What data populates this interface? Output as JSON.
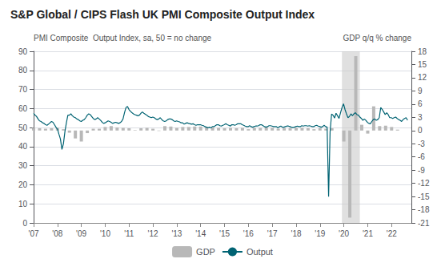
{
  "chart_data": {
    "type": "line",
    "title": "S&P Global / CIPS Flash UK PMI Composite Output Index",
    "ylabel": "PMI Composite  Output Index, sa, 50 = no change",
    "y2label": "GDP q/q % change",
    "xlim": [
      2007.0,
      2022.83
    ],
    "xticks": [
      {
        "value": 2007,
        "label": "'07"
      },
      {
        "value": 2008,
        "label": "'08"
      },
      {
        "value": 2009,
        "label": "'09"
      },
      {
        "value": 2010,
        "label": "'10"
      },
      {
        "value": 2011,
        "label": "'11"
      },
      {
        "value": 2012,
        "label": "'12"
      },
      {
        "value": 2013,
        "label": "'13"
      },
      {
        "value": 2014,
        "label": "'14"
      },
      {
        "value": 2015,
        "label": "'15"
      },
      {
        "value": 2016,
        "label": "'16"
      },
      {
        "value": 2017,
        "label": "'17"
      },
      {
        "value": 2018,
        "label": "'18"
      },
      {
        "value": 2019,
        "label": "'19"
      },
      {
        "value": 2020,
        "label": "'20"
      },
      {
        "value": 2021,
        "label": "'21"
      },
      {
        "value": 2022,
        "label": "'22"
      }
    ],
    "ylim": [
      0,
      90
    ],
    "yticks": [
      0,
      10,
      20,
      30,
      40,
      50,
      60,
      70,
      80,
      90
    ],
    "y2lim": [
      -21,
      18
    ],
    "y2ticks": [
      -21,
      -18,
      -15,
      -12,
      -9,
      -6,
      -3,
      0,
      3,
      6,
      9,
      12,
      15,
      18
    ],
    "grid": true,
    "legend": "bottom",
    "shade": [
      2019.92,
      2020.67
    ],
    "series": [
      {
        "name": "GDP",
        "type": "bar",
        "axis": "y2",
        "color": "#b8b8b8",
        "x": [
          2007.0,
          2007.25,
          2007.5,
          2007.75,
          2008.0,
          2008.25,
          2008.5,
          2008.75,
          2009.0,
          2009.25,
          2009.5,
          2009.75,
          2010.0,
          2010.25,
          2010.5,
          2010.75,
          2011.0,
          2011.25,
          2011.5,
          2011.75,
          2012.0,
          2012.25,
          2012.5,
          2012.75,
          2013.0,
          2013.25,
          2013.5,
          2013.75,
          2014.0,
          2014.25,
          2014.5,
          2014.75,
          2015.0,
          2015.25,
          2015.5,
          2015.75,
          2016.0,
          2016.25,
          2016.5,
          2016.75,
          2017.0,
          2017.25,
          2017.5,
          2017.75,
          2018.0,
          2018.25,
          2018.5,
          2018.75,
          2019.0,
          2019.25,
          2019.5,
          2019.75,
          2020.0,
          2020.25,
          2020.5,
          2020.75,
          2021.0,
          2021.25,
          2021.5,
          2021.75,
          2022.0,
          2022.25
        ],
        "values": [
          0.6,
          0.5,
          0.4,
          0.5,
          0.6,
          0.3,
          -0.5,
          -1.8,
          -2.5,
          -0.6,
          0.4,
          0.4,
          0.8,
          1.0,
          0.7,
          0.6,
          0.5,
          0.1,
          0.5,
          0.6,
          0.4,
          -0.1,
          1.0,
          0.9,
          0.6,
          0.8,
          0.8,
          0.9,
          0.9,
          0.8,
          0.7,
          0.6,
          0.5,
          0.6,
          0.5,
          0.6,
          0.3,
          0.6,
          0.6,
          0.7,
          0.6,
          0.4,
          0.5,
          0.5,
          0.6,
          0.6,
          0.5,
          0.3,
          0.5,
          0.4,
          0.5,
          0.0,
          -2.5,
          -19.8,
          16.9,
          1.3,
          -0.7,
          5.5,
          1.0,
          1.1,
          0.8,
          0.2
        ]
      },
      {
        "name": "Output",
        "type": "line",
        "color": "#006373",
        "x": [
          2007.0,
          2007.0624,
          2007.1249,
          2007.1873,
          2007.2497,
          2007.3122,
          2007.3746,
          2007.437,
          2007.4994,
          2007.5619,
          2007.6243,
          2007.6867,
          2007.7492,
          2007.8116,
          2007.874,
          2007.9365,
          2007.9989,
          2008.0613,
          2008.1237,
          2008.1862,
          2008.2486,
          2008.311,
          2008.3735,
          2008.4359,
          2008.4983,
          2008.5608,
          2008.6232,
          2008.6856,
          2008.748,
          2008.8105,
          2008.8729,
          2008.9353,
          2008.9978,
          2009.0602,
          2009.1226,
          2009.1851,
          2009.2475,
          2009.3099,
          2009.3724,
          2009.4348,
          2009.4972,
          2009.5596,
          2009.6221,
          2009.6845,
          2009.7469,
          2009.8094,
          2009.8718,
          2009.9342,
          2009.9967,
          2010.0591,
          2010.1215,
          2010.1839,
          2010.2464,
          2010.3088,
          2010.3712,
          2010.4337,
          2010.4961,
          2010.5585,
          2010.621,
          2010.6834,
          2010.7458,
          2010.8082,
          2010.8707,
          2010.9331,
          2010.9955,
          2011.058,
          2011.1204,
          2011.1828,
          2011.2453,
          2011.3077,
          2011.3701,
          2011.4325,
          2011.495,
          2011.5574,
          2011.6198,
          2011.6823,
          2011.7447,
          2011.8071,
          2011.8696,
          2011.932,
          2011.9944,
          2012.0569,
          2012.1193,
          2012.1817,
          2012.2441,
          2012.3066,
          2012.369,
          2012.4314,
          2012.4939,
          2012.5563,
          2012.6187,
          2012.6812,
          2012.7436,
          2012.806,
          2012.8684,
          2012.9309,
          2012.9933,
          2013.0557,
          2013.1182,
          2013.1806,
          2013.243,
          2013.3055,
          2013.3679,
          2013.4303,
          2013.4927,
          2013.5552,
          2013.6176,
          2013.68,
          2013.7425,
          2013.8049,
          2013.8673,
          2013.9298,
          2013.9922,
          2014.0546,
          2014.1171,
          2014.1795,
          2014.2419,
          2014.3043,
          2014.3668,
          2014.4292,
          2014.4916,
          2014.5541,
          2014.6165,
          2014.6789,
          2014.7414,
          2014.8038,
          2014.8662,
          2014.9286,
          2014.9911,
          2015.0535,
          2015.1159,
          2015.1784,
          2015.2408,
          2015.3032,
          2015.3657,
          2015.4281,
          2015.4905,
          2015.5529,
          2015.6154,
          2015.6778,
          2015.7402,
          2015.8027,
          2015.8651,
          2015.9275,
          2015.99,
          2016.0524,
          2016.1148,
          2016.1773,
          2016.2397,
          2016.3021,
          2016.3645,
          2016.427,
          2016.4894,
          2016.5518,
          2016.6143,
          2016.6767,
          2016.7391,
          2016.8016,
          2016.864,
          2016.9264,
          2016.9888,
          2017.0513,
          2017.1137,
          2017.1761,
          2017.2386,
          2017.301,
          2017.3634,
          2017.4259,
          2017.4883,
          2017.5507,
          2017.6131,
          2017.6756,
          2017.738,
          2017.8004,
          2017.8629,
          2017.9253,
          2017.9877,
          2018.0502,
          2018.1126,
          2018.175,
          2018.2375,
          2018.2999,
          2018.3623,
          2018.4247,
          2018.4872,
          2018.5496,
          2018.612,
          2018.6745,
          2018.7369,
          2018.7993,
          2018.8618,
          2018.9242,
          2018.9866,
          2019.049,
          2019.1115,
          2019.1739,
          2019.2363,
          2019.2988,
          2019.3612,
          2019.4236,
          2019.4861,
          2019.5485,
          2019.6109,
          2019.6733,
          2019.7358,
          2019.7982,
          2019.8606,
          2019.9231,
          2019.9855,
          2020.0479,
          2020.1104,
          2020.1728,
          2020.2352,
          2020.2976,
          2020.3601,
          2020.4225,
          2020.4849,
          2020.5474,
          2020.6098,
          2020.6722,
          2020.7347,
          2020.7971,
          2020.8595,
          2020.922,
          2020.9844,
          2021.0468,
          2021.1092,
          2021.1717,
          2021.2341,
          2021.2965,
          2021.359,
          2021.4214,
          2021.4838,
          2021.5463,
          2021.6087,
          2021.6711,
          2021.7335,
          2021.796,
          2021.8584,
          2021.9208,
          2021.9833,
          2022.0457,
          2022.1081,
          2022.1706,
          2022.233,
          2022.2954,
          2022.3578,
          2022.4203,
          2022.4827,
          2022.5451,
          2022.6076,
          2022.67
        ],
        "values": [
          57.5,
          56.5,
          55.8,
          54.5,
          53.5,
          53.2,
          52.5,
          52.2,
          51.5,
          51.2,
          51.8,
          52.5,
          53.2,
          52.8,
          51.5,
          50.2,
          49.2,
          46.5,
          44.0,
          38.5,
          41.5,
          47.8,
          52.5,
          56.5,
          56.5,
          57.2,
          56.2,
          55.5,
          55.2,
          54.5,
          54.2,
          53.5,
          53.2,
          53.8,
          54.2,
          55.2,
          56.5,
          57.2,
          56.8,
          55.8,
          54.8,
          54.2,
          54.5,
          55.2,
          54.5,
          53.8,
          52.8,
          52.2,
          52.5,
          53.0,
          53.5,
          53.2,
          52.8,
          52.2,
          52.5,
          52.8,
          52.5,
          52.2,
          52.5,
          53.2,
          54.5,
          57.8,
          60.5,
          61.1,
          59.5,
          58.5,
          57.8,
          57.2,
          56.8,
          56.5,
          56.2,
          56.5,
          57.5,
          58.2,
          57.5,
          57.0,
          56.5,
          55.8,
          55.5,
          55.2,
          55.5,
          55.2,
          54.5,
          54.2,
          54.5,
          55.2,
          54.2,
          53.5,
          53.2,
          53.5,
          54.2,
          54.5,
          54.5,
          54.2,
          53.5,
          53.2,
          53.5,
          53.2,
          53.0,
          52.5,
          52.5,
          51.8,
          52.2,
          52.5,
          52.2,
          52.0,
          51.8,
          52.0,
          51.5,
          51.2,
          51.5,
          51.5,
          51.5,
          51.2,
          51.0,
          50.5,
          50.2,
          49.8,
          50.2,
          49.8,
          50.5,
          50.5,
          51.0,
          51.5,
          51.5,
          51.0,
          50.8,
          51.2,
          51.5,
          52.0,
          51.5,
          51.2,
          50.8,
          51.5,
          51.5,
          51.2,
          51.5,
          52.0,
          52.0,
          52.0,
          51.5,
          51.2,
          50.8,
          50.5,
          50.5,
          51.0,
          50.5,
          50.2,
          50.5,
          50.8,
          50.8,
          51.0,
          51.5,
          51.5,
          51.0,
          50.5,
          50.2,
          50.5,
          51.0,
          51.0,
          50.8,
          50.5,
          50.5,
          50.5,
          49.8,
          50.5,
          50.8,
          50.2,
          50.2,
          50.5,
          50.8,
          50.8,
          50.5,
          50.2,
          50.0,
          50.2,
          50.5,
          50.8,
          50.5,
          50.5,
          51.0,
          50.8,
          51.0,
          51.0,
          50.8,
          51.0,
          50.8,
          50.5,
          50.5,
          51.0,
          51.2,
          50.8,
          50.5,
          50.2,
          50.5,
          51.2,
          50.5,
          50.2,
          13.8,
          47.7,
          57.1,
          56.5,
          55.0,
          57.5,
          56.2,
          54.8,
          57.8,
          60.5,
          62.5,
          59.5,
          57.2,
          55.2,
          55.8,
          57.2,
          56.2,
          57.2,
          57.8,
          56.8,
          56.5,
          55.5,
          54.8,
          53.8,
          54.5,
          53.8,
          52.8,
          52.2,
          52.0,
          53.2,
          54.2,
          54.5,
          53.8,
          54.2,
          55.2,
          60.5,
          59.5,
          58.2,
          56.8,
          57.8,
          56.8,
          55.2,
          55.2,
          54.8,
          55.2,
          55.5,
          54.8,
          54.2,
          53.8,
          53.2,
          54.2,
          54.8,
          55.2,
          53.8
        ]
      }
    ]
  }
}
